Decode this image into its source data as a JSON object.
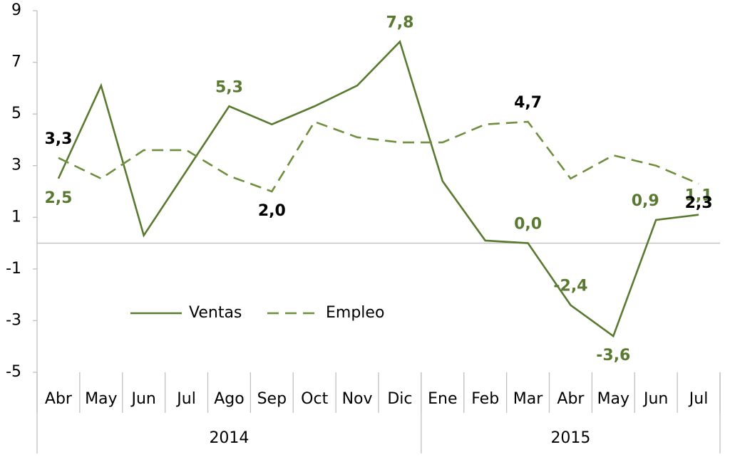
{
  "chart_data": {
    "type": "line",
    "categories": [
      "Abr",
      "May",
      "Jun",
      "Jul",
      "Ago",
      "Sep",
      "Oct",
      "Nov",
      "Dic",
      "Ene",
      "Feb",
      "Mar",
      "Abr",
      "May",
      "Jun",
      "Jul"
    ],
    "year_groups": [
      {
        "label": "2014",
        "count": 9
      },
      {
        "label": "2015",
        "count": 7
      }
    ],
    "series": [
      {
        "name": "Ventas",
        "color": "#5a7a32",
        "dash": false,
        "label_color": "#5a7a32",
        "values": [
          2.5,
          6.1,
          0.3,
          2.8,
          5.3,
          4.6,
          5.3,
          6.1,
          7.8,
          2.4,
          0.1,
          0.0,
          -2.4,
          -3.6,
          0.9,
          1.1
        ],
        "value_labels": [
          "2,5",
          null,
          null,
          null,
          "5,3",
          null,
          null,
          null,
          "7,8",
          null,
          null,
          "0,0",
          "-2,4",
          "-3,6",
          "0,9",
          "1,1"
        ]
      },
      {
        "name": "Empleo",
        "color": "#6f8f3e",
        "dash": true,
        "label_color": "#000000",
        "values": [
          3.3,
          2.5,
          3.6,
          3.6,
          2.6,
          2.0,
          4.7,
          4.1,
          3.9,
          3.9,
          4.6,
          4.7,
          2.5,
          3.4,
          3.0,
          2.3
        ],
        "value_labels": [
          "3,3",
          null,
          null,
          null,
          null,
          "2,0",
          null,
          null,
          null,
          null,
          null,
          "4,7",
          null,
          null,
          null,
          "2,3"
        ]
      }
    ],
    "ylim": [
      -5,
      9
    ],
    "yticks": [
      -5,
      -3,
      -1,
      1,
      3,
      5,
      7,
      9
    ],
    "grid": false
  }
}
